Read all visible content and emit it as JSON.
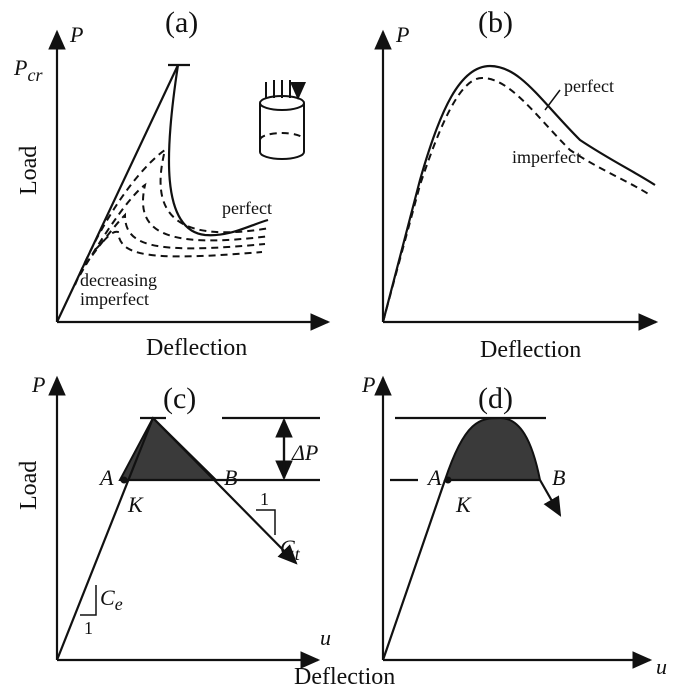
{
  "panels": [
    {
      "label": "(a)",
      "y_axis": "P",
      "p_cr": {
        "base": "P",
        "sub": "cr"
      },
      "y_label": "Load",
      "x_label": "Deflection",
      "curve_perfect": "perfect",
      "curve_imperfect": [
        "decreasing",
        "imperfect"
      ]
    },
    {
      "label": "(b)",
      "y_axis": "P",
      "x_label": "Deflection",
      "curve_perfect": "perfect",
      "curve_imperfect": "imperfect"
    },
    {
      "label": "(c)",
      "y_axis": "P",
      "y_label": "Load",
      "x_axis": "u",
      "x_label": "Deflection",
      "point_a": "A",
      "point_b": "B",
      "point_k": "K",
      "delta_p": "ΔP",
      "slope_t": {
        "run": "1",
        "base": "C",
        "sub": "t"
      },
      "slope_e": {
        "run": "1",
        "base": "C",
        "sub": "e"
      }
    },
    {
      "label": "(d)",
      "y_axis": "P",
      "x_axis": "u",
      "point_a": "A",
      "point_b": "B",
      "point_k": "K"
    }
  ]
}
